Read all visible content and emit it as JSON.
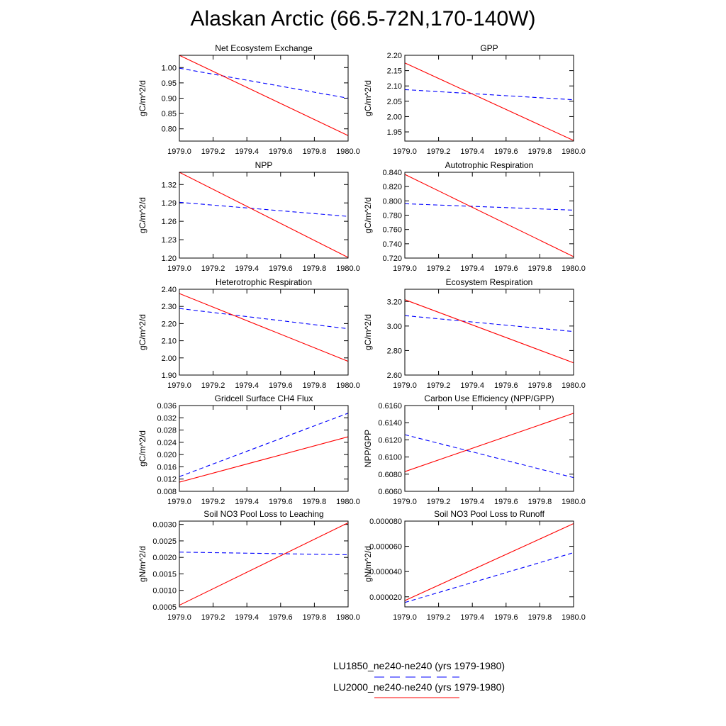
{
  "title": "Alaskan Arctic (66.5-72N,170-140W)",
  "legend": {
    "entries": [
      {
        "label": "LU1850_ne240-ne240 (yrs 1979-1980)",
        "color": "#0000ff",
        "style": "dashed"
      },
      {
        "label": "LU2000_ne240-ne240 (yrs 1979-1980)",
        "color": "#ff0000",
        "style": "solid"
      }
    ]
  },
  "x_ticks": [
    "1979.0",
    "1979.2",
    "1979.4",
    "1979.6",
    "1979.8",
    "1980.0"
  ],
  "chart_data": [
    {
      "type": "line",
      "title": "Net Ecosystem Exchange",
      "ylabel": "gC/m^2/d",
      "xlim": [
        1979.0,
        1980.0
      ],
      "ylim": [
        0.76,
        1.04
      ],
      "yticks": [
        "0.80",
        "0.85",
        "0.90",
        "0.95",
        "1.00"
      ],
      "series": [
        {
          "name": "LU1850_ne240-ne240 (yrs 1979-1980)",
          "x": [
            1979.0,
            1980.0
          ],
          "values": [
            0.998,
            0.9
          ]
        },
        {
          "name": "LU2000_ne240-ne240 (yrs 1979-1980)",
          "x": [
            1979.0,
            1980.0
          ],
          "values": [
            1.04,
            0.778
          ]
        }
      ]
    },
    {
      "type": "line",
      "title": "GPP",
      "ylabel": "gC/m^2/d",
      "xlim": [
        1979.0,
        1980.0
      ],
      "ylim": [
        1.92,
        2.2
      ],
      "yticks": [
        "1.95",
        "2.00",
        "2.05",
        "2.10",
        "2.15",
        "2.20"
      ],
      "series": [
        {
          "name": "LU1850_ne240-ne240 (yrs 1979-1980)",
          "x": [
            1979.0,
            1980.0
          ],
          "values": [
            2.088,
            2.055
          ]
        },
        {
          "name": "LU2000_ne240-ne240 (yrs 1979-1980)",
          "x": [
            1979.0,
            1980.0
          ],
          "values": [
            2.175,
            1.922
          ]
        }
      ]
    },
    {
      "type": "line",
      "title": "NPP",
      "ylabel": "gC/m^2/d",
      "xlim": [
        1979.0,
        1980.0
      ],
      "ylim": [
        1.2,
        1.34
      ],
      "yticks": [
        "1.20",
        "1.23",
        "1.26",
        "1.29",
        "1.32"
      ],
      "series": [
        {
          "name": "LU1850_ne240-ne240 (yrs 1979-1980)",
          "x": [
            1979.0,
            1980.0
          ],
          "values": [
            1.291,
            1.268
          ]
        },
        {
          "name": "LU2000_ne240-ne240 (yrs 1979-1980)",
          "x": [
            1979.0,
            1980.0
          ],
          "values": [
            1.34,
            1.201
          ]
        }
      ]
    },
    {
      "type": "line",
      "title": "Autotrophic Respiration",
      "ylabel": "gC/m^2/d",
      "xlim": [
        1979.0,
        1980.0
      ],
      "ylim": [
        0.72,
        0.84
      ],
      "yticks": [
        "0.720",
        "0.740",
        "0.760",
        "0.780",
        "0.800",
        "0.820",
        "0.840"
      ],
      "series": [
        {
          "name": "LU1850_ne240-ne240 (yrs 1979-1980)",
          "x": [
            1979.0,
            1980.0
          ],
          "values": [
            0.796,
            0.787
          ]
        },
        {
          "name": "LU2000_ne240-ne240 (yrs 1979-1980)",
          "x": [
            1979.0,
            1980.0
          ],
          "values": [
            0.837,
            0.722
          ]
        }
      ]
    },
    {
      "type": "line",
      "title": "Heterotrophic Respiration",
      "ylabel": "gC/m^2/d",
      "xlim": [
        1979.0,
        1980.0
      ],
      "ylim": [
        1.9,
        2.4
      ],
      "yticks": [
        "1.90",
        "2.00",
        "2.10",
        "2.20",
        "2.30",
        "2.40"
      ],
      "series": [
        {
          "name": "LU1850_ne240-ne240 (yrs 1979-1980)",
          "x": [
            1979.0,
            1980.0
          ],
          "values": [
            2.288,
            2.17
          ]
        },
        {
          "name": "LU2000_ne240-ne240 (yrs 1979-1980)",
          "x": [
            1979.0,
            1980.0
          ],
          "values": [
            2.375,
            1.98
          ]
        }
      ]
    },
    {
      "type": "line",
      "title": "Ecosystem Respiration",
      "ylabel": "gC/m^2/d",
      "xlim": [
        1979.0,
        1980.0
      ],
      "ylim": [
        2.6,
        3.3
      ],
      "yticks": [
        "2.60",
        "2.80",
        "3.00",
        "3.20"
      ],
      "series": [
        {
          "name": "LU1850_ne240-ne240 (yrs 1979-1980)",
          "x": [
            1979.0,
            1980.0
          ],
          "values": [
            3.085,
            2.955
          ]
        },
        {
          "name": "LU2000_ne240-ne240 (yrs 1979-1980)",
          "x": [
            1979.0,
            1980.0
          ],
          "values": [
            3.215,
            2.7
          ]
        }
      ]
    },
    {
      "type": "line",
      "title": "Gridcell Surface CH4 Flux",
      "ylabel": "gC/m^2/d",
      "xlim": [
        1979.0,
        1980.0
      ],
      "ylim": [
        0.008,
        0.036
      ],
      "yticks": [
        "0.008",
        "0.012",
        "0.016",
        "0.020",
        "0.024",
        "0.028",
        "0.032",
        "0.036"
      ],
      "series": [
        {
          "name": "LU1850_ne240-ne240 (yrs 1979-1980)",
          "x": [
            1979.0,
            1980.0
          ],
          "values": [
            0.0128,
            0.0335
          ]
        },
        {
          "name": "LU2000_ne240-ne240 (yrs 1979-1980)",
          "x": [
            1979.0,
            1980.0
          ],
          "values": [
            0.011,
            0.0258
          ]
        }
      ]
    },
    {
      "type": "line",
      "title": "Carbon Use Efficiency (NPP/GPP)",
      "ylabel": "NPP/GPP",
      "xlim": [
        1979.0,
        1980.0
      ],
      "ylim": [
        0.606,
        0.616
      ],
      "yticks": [
        "0.6060",
        "0.6080",
        "0.6100",
        "0.6120",
        "0.6140",
        "0.6160"
      ],
      "series": [
        {
          "name": "LU1850_ne240-ne240 (yrs 1979-1980)",
          "x": [
            1979.0,
            1980.0
          ],
          "values": [
            0.6126,
            0.6076
          ]
        },
        {
          "name": "LU2000_ne240-ne240 (yrs 1979-1980)",
          "x": [
            1979.0,
            1980.0
          ],
          "values": [
            0.6083,
            0.6151
          ]
        }
      ]
    },
    {
      "type": "line",
      "title": "Soil NO3 Pool Loss to Leaching",
      "ylabel": "gN/m^2/d",
      "xlim": [
        1979.0,
        1980.0
      ],
      "ylim": [
        0.0005,
        0.0031
      ],
      "yticks": [
        "0.0005",
        "0.0010",
        "0.0015",
        "0.0020",
        "0.0025",
        "0.0030"
      ],
      "series": [
        {
          "name": "LU1850_ne240-ne240 (yrs 1979-1980)",
          "x": [
            1979.0,
            1980.0
          ],
          "values": [
            0.00216,
            0.00208
          ]
        },
        {
          "name": "LU2000_ne240-ne240 (yrs 1979-1980)",
          "x": [
            1979.0,
            1980.0
          ],
          "values": [
            0.00055,
            0.00305
          ]
        }
      ]
    },
    {
      "type": "line",
      "title": "Soil NO3 Pool Loss to Runoff",
      "ylabel": "gN/m^2/d",
      "xlim": [
        1979.0,
        1980.0
      ],
      "ylim": [
        1.2e-05,
        8e-05
      ],
      "yticks": [
        "0.000020",
        "0.000040",
        "0.000060",
        "0.000080"
      ],
      "series": [
        {
          "name": "LU1850_ne240-ne240 (yrs 1979-1980)",
          "x": [
            1979.0,
            1980.0
          ],
          "values": [
            1.55e-05,
            5.5e-05
          ]
        },
        {
          "name": "LU2000_ne240-ne240 (yrs 1979-1980)",
          "x": [
            1979.0,
            1980.0
          ],
          "values": [
            1.7e-05,
            7.8e-05
          ]
        }
      ]
    }
  ]
}
